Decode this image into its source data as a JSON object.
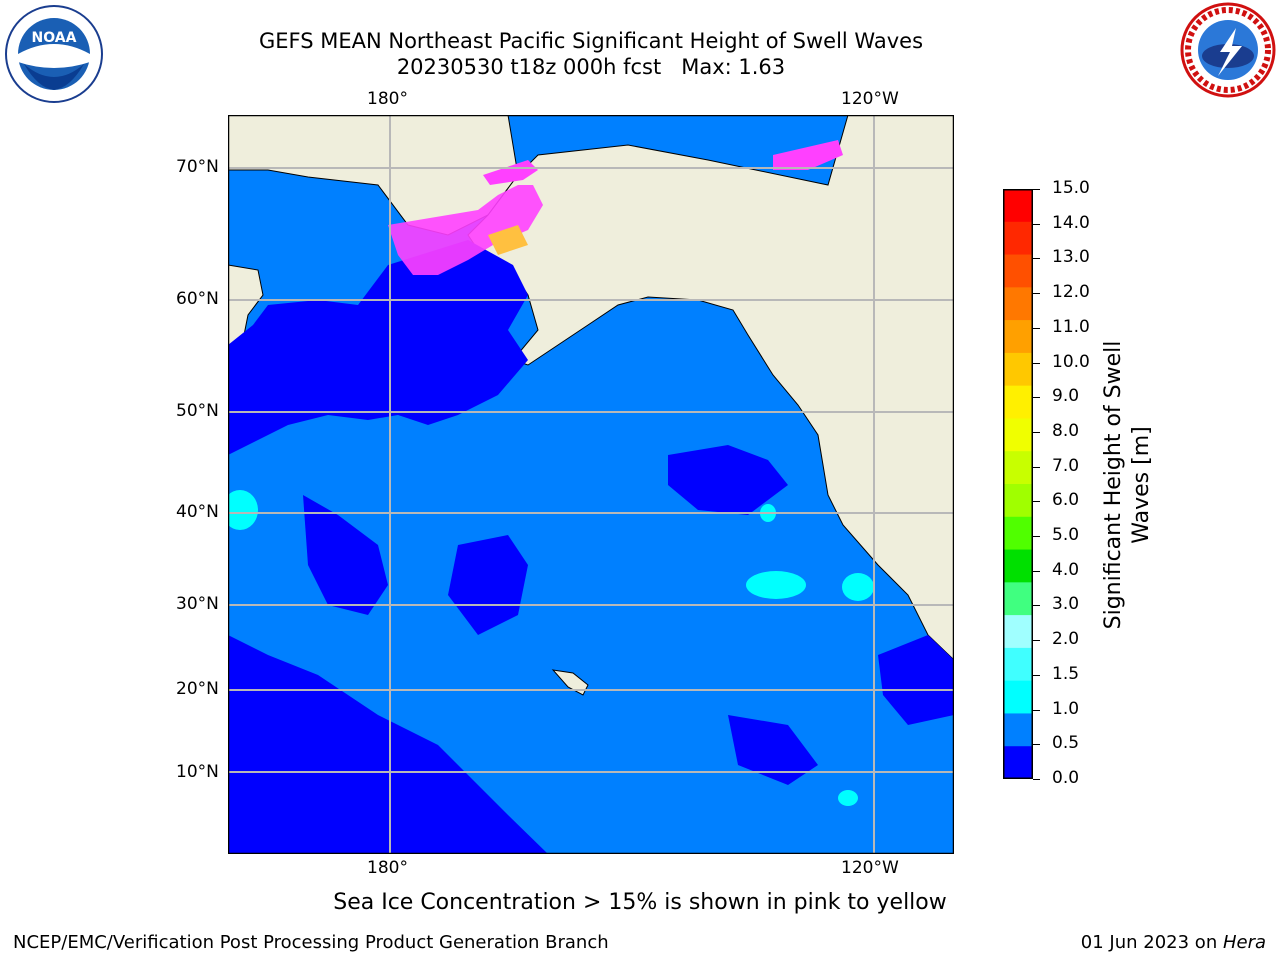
{
  "header": {
    "title_line1": "GEFS MEAN Northeast Pacific Significant Height of Swell Waves",
    "title_line2": "20230530 t18z 000h fcst   Max: 1.63"
  },
  "logos": {
    "left": {
      "name": "noaa-logo",
      "text": "NOAA"
    },
    "right": {
      "name": "nws-logo"
    }
  },
  "map": {
    "lon_labels": [
      "180°",
      "120°W"
    ],
    "lat_labels": [
      "70°N",
      "60°N",
      "50°N",
      "40°N",
      "30°N",
      "20°N",
      "10°N"
    ],
    "colors": {
      "land": "#efeedc",
      "ocean_low": "#0000ff",
      "ocean_mid": "#0080ff",
      "ocean_high": "#00ffff",
      "grid": "#b8b8b8",
      "ice": "#ff40ff",
      "ice_warm": "#ffc040"
    }
  },
  "colorbar": {
    "label_line1": "Significant Height of Swell",
    "label_line2": "Waves [m]",
    "ticks": [
      "15.0",
      "14.0",
      "13.0",
      "12.0",
      "11.0",
      "10.0",
      "9.0",
      "8.0",
      "7.0",
      "6.0",
      "5.0",
      "4.0",
      "3.0",
      "2.0",
      "1.5",
      "1.0",
      "0.5",
      "0.0"
    ],
    "colors_top_to_bottom": [
      "#ff0000",
      "#ff2800",
      "#ff5000",
      "#ff7800",
      "#ffa000",
      "#ffc800",
      "#fff000",
      "#f0ff00",
      "#c8ff00",
      "#a0ff00",
      "#50ff00",
      "#00e000",
      "#40ff80",
      "#a0ffff",
      "#40ffff",
      "#00ffff",
      "#0080ff",
      "#0000ff"
    ]
  },
  "note": "Sea Ice Concentration > 15% is shown in pink to yellow",
  "footer": {
    "left": "NCEP/EMC/Verification Post Processing Product Generation Branch",
    "right_prefix": "01 Jun 2023 on ",
    "right_host": "Hera"
  }
}
